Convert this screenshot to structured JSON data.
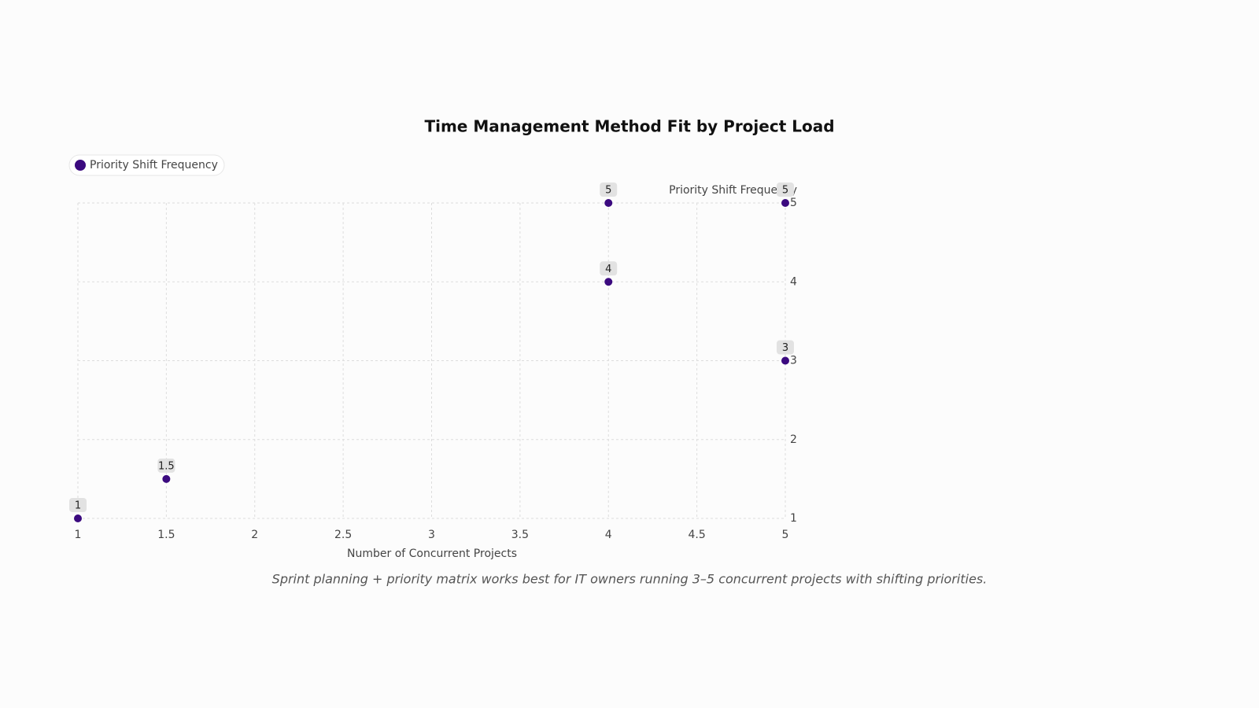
{
  "chart_data": {
    "type": "scatter",
    "title": "Time Management Method Fit by Project Load",
    "x_label": "Number of Concurrent Projects",
    "y_label": "Priority Shift Frequency",
    "caption": "Sprint planning + priority matrix works best for IT owners running 3–5 concurrent projects with shifting priorities.",
    "x": [
      1,
      1.5,
      4,
      4,
      5,
      5
    ],
    "series": [
      {
        "name": "Priority Shift Frequency",
        "color": "#3b0a7f",
        "values": [
          1,
          1.5,
          5,
          4,
          3,
          5
        ]
      }
    ],
    "xlim": [
      1,
      5
    ],
    "xticks": [
      1,
      1.5,
      2,
      2.5,
      3,
      3.5,
      4,
      4.5,
      5
    ],
    "ylim": [
      1,
      5
    ],
    "yticks": [
      1,
      2,
      3,
      4,
      5
    ],
    "grid": true,
    "legend": "top-left",
    "y_axis_side": "right"
  }
}
